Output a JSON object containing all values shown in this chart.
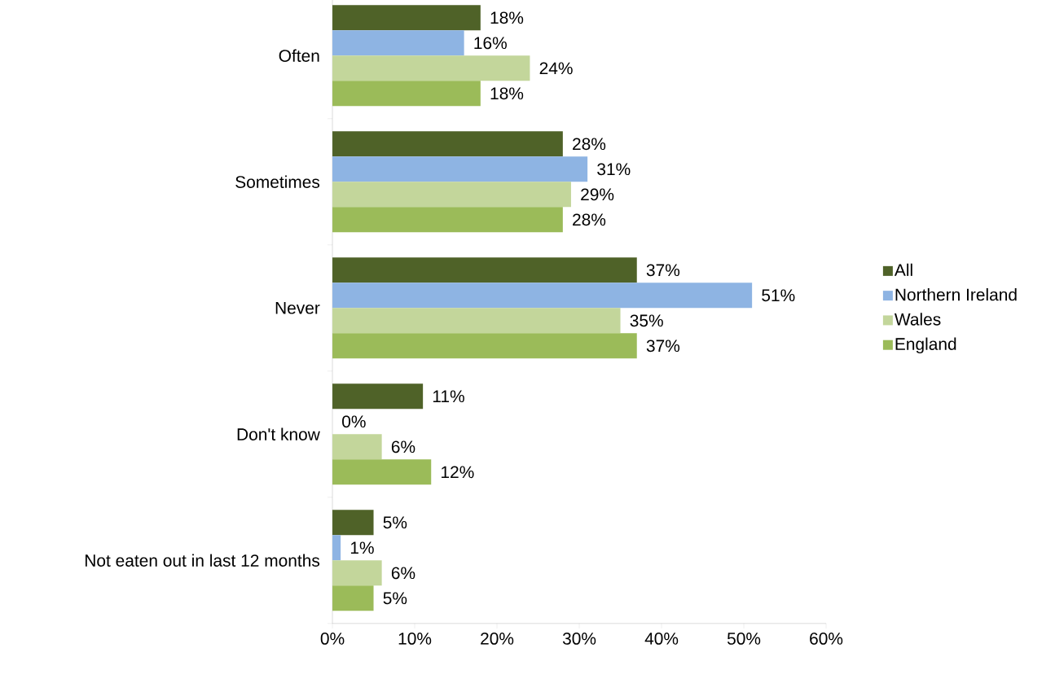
{
  "chart_data": {
    "type": "bar",
    "orientation": "horizontal",
    "categories": [
      "Often",
      "Sometimes",
      "Never",
      "Don't know",
      "Not eaten out in last 12 months"
    ],
    "series": [
      {
        "name": "All",
        "color": "#4f6228",
        "values": [
          18,
          28,
          37,
          11,
          5
        ],
        "value_labels": [
          "18%",
          "28%",
          "37%",
          "11%",
          "5%"
        ]
      },
      {
        "name": "Northern Ireland",
        "color": "#8eb4e3",
        "values": [
          16,
          31,
          51,
          0,
          1
        ],
        "value_labels": [
          "16%",
          "31%",
          "51%",
          "0%",
          "1%"
        ]
      },
      {
        "name": "Wales",
        "color": "#c3d69b",
        "values": [
          24,
          29,
          35,
          6,
          6
        ],
        "value_labels": [
          "24%",
          "29%",
          "35%",
          "6%",
          "6%"
        ]
      },
      {
        "name": "England",
        "color": "#9bbb59",
        "values": [
          18,
          28,
          37,
          12,
          5
        ],
        "value_labels": [
          "18%",
          "28%",
          "37%",
          "12%",
          "5%"
        ]
      }
    ],
    "xlim": [
      0,
      60
    ],
    "xticks": [
      {
        "value": 0,
        "label": "0%"
      },
      {
        "value": 10,
        "label": "10%"
      },
      {
        "value": 20,
        "label": "20%"
      },
      {
        "value": 30,
        "label": "30%"
      },
      {
        "value": 40,
        "label": "40%"
      },
      {
        "value": 50,
        "label": "50%"
      },
      {
        "value": 60,
        "label": "60%"
      }
    ],
    "legend": "right"
  }
}
